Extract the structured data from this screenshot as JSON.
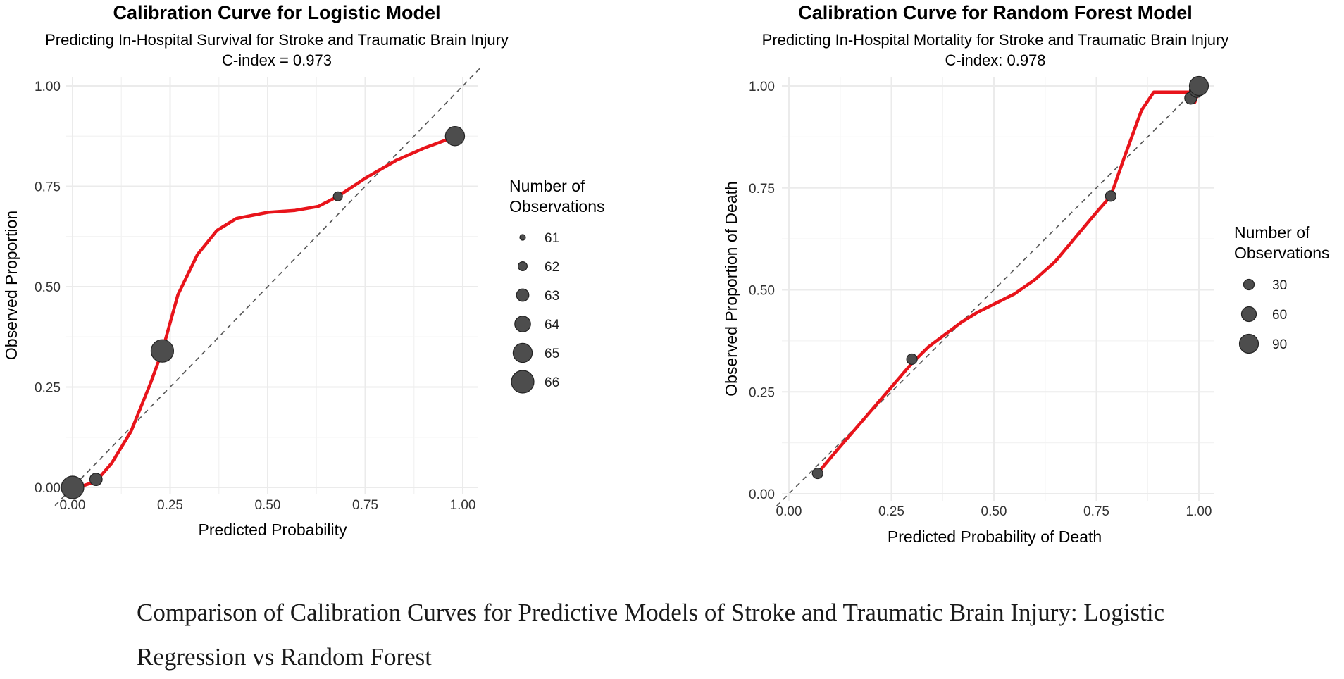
{
  "chart_data": [
    {
      "type": "scatter",
      "title": "Calibration Curve for Logistic Model",
      "subtitle": "Predicting In-Hospital Survival for Stroke and Traumatic Brain Injury",
      "annotation": "C-index = 0.973",
      "xlabel": "Predicted Probability",
      "ylabel": "Observed Proportion",
      "xlim": [
        0,
        1
      ],
      "ylim": [
        0,
        1
      ],
      "xticks": [
        0,
        0.25,
        0.5,
        0.75,
        1
      ],
      "xtick_labels": [
        "0.00",
        "0.25",
        "0.50",
        "0.75",
        "1.00"
      ],
      "yticks": [
        0,
        0.25,
        0.5,
        0.75,
        1
      ],
      "ytick_labels": [
        "0.00",
        "0.25",
        "0.50",
        "0.75",
        "1.00"
      ],
      "grid": true,
      "reference_line": "diagonal dashed (y = x)",
      "points": [
        {
          "x": 0.0,
          "y": 0.0,
          "n": 66
        },
        {
          "x": 0.06,
          "y": 0.02,
          "n": 63
        },
        {
          "x": 0.23,
          "y": 0.34,
          "n": 66
        },
        {
          "x": 0.68,
          "y": 0.725,
          "n": 62
        },
        {
          "x": 0.98,
          "y": 0.875,
          "n": 65
        }
      ],
      "smooth_curve": {
        "name": "calibration fit",
        "color": "#e8141b",
        "x": [
          0.0,
          0.03,
          0.06,
          0.1,
          0.15,
          0.2,
          0.23,
          0.27,
          0.32,
          0.37,
          0.42,
          0.5,
          0.57,
          0.63,
          0.68,
          0.75,
          0.83,
          0.9,
          0.97
        ],
        "y": [
          0.0,
          0.005,
          0.015,
          0.06,
          0.14,
          0.26,
          0.34,
          0.48,
          0.58,
          0.64,
          0.67,
          0.685,
          0.69,
          0.7,
          0.725,
          0.77,
          0.815,
          0.845,
          0.87
        ]
      },
      "legend": {
        "title": "Number of Observations",
        "position": "right",
        "entries": [
          {
            "label": "61",
            "n": 61
          },
          {
            "label": "62",
            "n": 62
          },
          {
            "label": "63",
            "n": 63
          },
          {
            "label": "64",
            "n": 64
          },
          {
            "label": "65",
            "n": 65
          },
          {
            "label": "66",
            "n": 66
          }
        ]
      }
    },
    {
      "type": "scatter",
      "title": "Calibration Curve for Random Forest Model",
      "subtitle": "Predicting In-Hospital Mortality for Stroke and Traumatic Brain Injury",
      "annotation": "C-index: 0.978",
      "xlabel": "Predicted Probability of Death",
      "ylabel": "Observed Proportion of Death",
      "xlim": [
        0,
        1
      ],
      "ylim": [
        0,
        1
      ],
      "xticks": [
        0,
        0.25,
        0.5,
        0.75,
        1
      ],
      "xtick_labels": [
        "0.00",
        "0.25",
        "0.50",
        "0.75",
        "1.00"
      ],
      "yticks": [
        0,
        0.25,
        0.5,
        0.75,
        1
      ],
      "ytick_labels": [
        "0.00",
        "0.25",
        "0.50",
        "0.75",
        "1.00"
      ],
      "grid": true,
      "reference_line": "diagonal dashed (y = x)",
      "points": [
        {
          "x": 0.07,
          "y": 0.05,
          "n": 30
        },
        {
          "x": 0.3,
          "y": 0.33,
          "n": 30
        },
        {
          "x": 0.785,
          "y": 0.73,
          "n": 30
        },
        {
          "x": 0.98,
          "y": 0.97,
          "n": 40
        },
        {
          "x": 0.995,
          "y": 0.99,
          "n": 60
        },
        {
          "x": 1.0,
          "y": 1.0,
          "n": 90
        }
      ],
      "smooth_curve": {
        "name": "calibration fit",
        "color": "#e8141b",
        "x": [
          0.07,
          0.12,
          0.18,
          0.24,
          0.3,
          0.34,
          0.38,
          0.42,
          0.46,
          0.5,
          0.55,
          0.6,
          0.65,
          0.7,
          0.75,
          0.785,
          0.82,
          0.86,
          0.89,
          0.92,
          0.95,
          0.98,
          0.99,
          1.0,
          1.0
        ],
        "y": [
          0.05,
          0.11,
          0.18,
          0.25,
          0.32,
          0.36,
          0.39,
          0.42,
          0.445,
          0.465,
          0.49,
          0.525,
          0.57,
          0.63,
          0.69,
          0.73,
          0.83,
          0.94,
          0.985,
          0.985,
          0.985,
          0.985,
          0.96,
          0.99,
          1.0
        ]
      },
      "legend": {
        "title": "Number of Observations",
        "position": "right",
        "entries": [
          {
            "label": "30",
            "n": 30
          },
          {
            "label": "60",
            "n": 60
          },
          {
            "label": "90",
            "n": 90
          }
        ]
      }
    }
  ],
  "colors": {
    "points": "#4d4d4d",
    "curve": "#e8141b",
    "grid": "#ebebeb",
    "reference": "#555555"
  },
  "caption": "Comparison of Calibration Curves for Predictive Models of Stroke and Traumatic Brain Injury: Logistic Regression vs Random Forest"
}
